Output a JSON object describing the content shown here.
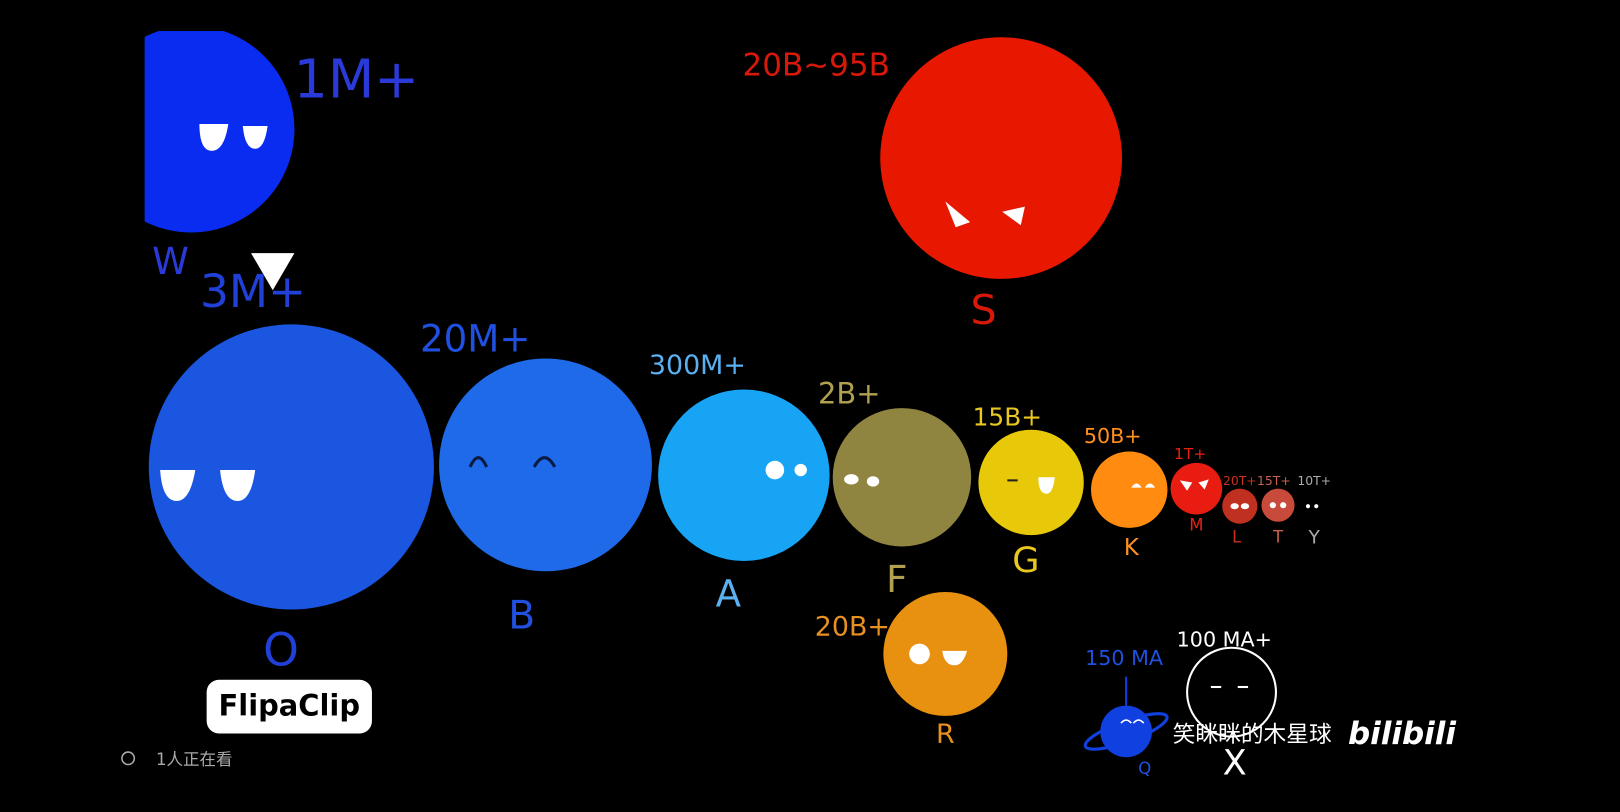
{
  "stars": [
    {
      "label": "W",
      "mass": "1M+"
    },
    {
      "label": "O",
      "mass": "3M+"
    },
    {
      "label": "B",
      "mass": "20M+"
    },
    {
      "label": "A",
      "mass": "300M+"
    },
    {
      "label": "F",
      "mass": "2B+"
    },
    {
      "label": "G",
      "mass": "15B+"
    },
    {
      "label": "K",
      "mass": "50B+"
    },
    {
      "label": "M",
      "mass": "1T+"
    },
    {
      "label": "L",
      "mass": "20T+"
    },
    {
      "label": "T",
      "mass": "15T+"
    },
    {
      "label": "Y",
      "mass": "10T+"
    },
    {
      "label": "S",
      "mass": "20B~95B"
    },
    {
      "label": "R",
      "mass": "20B+"
    },
    {
      "label": "Q",
      "mass": "150 MA"
    },
    {
      "label": "X",
      "mass": "100 MA+"
    }
  ],
  "watermarks": {
    "app": "FlipaClip",
    "author": "笑眯眯的木星球",
    "site": "bilibili",
    "viewers": "1人正在看"
  }
}
